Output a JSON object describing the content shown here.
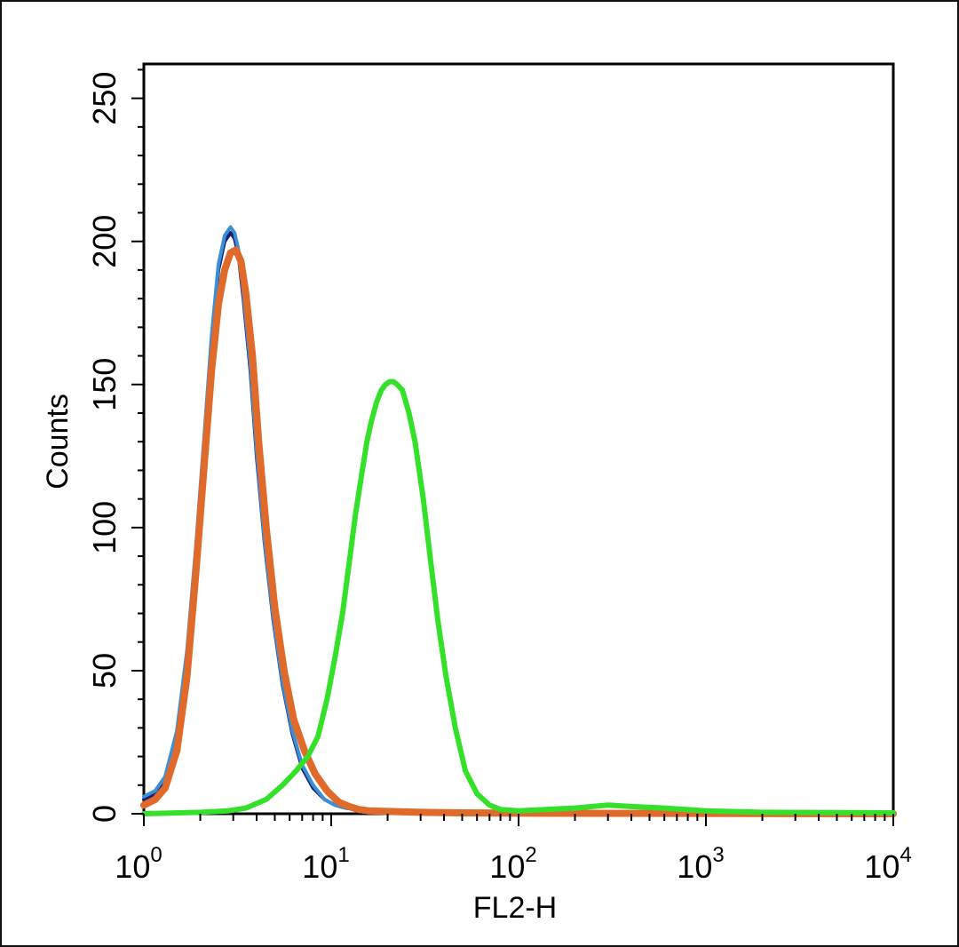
{
  "chart_data": {
    "type": "line",
    "xlabel": "FL2-H",
    "ylabel": "Counts",
    "xscale": "log",
    "xlim": [
      1,
      10000
    ],
    "ylim": [
      0,
      262
    ],
    "yticks": [
      {
        "value": 0,
        "label": "0"
      },
      {
        "value": 50,
        "label": "50"
      },
      {
        "value": 100,
        "label": "100"
      },
      {
        "value": 150,
        "label": "150"
      },
      {
        "value": 200,
        "label": "200"
      },
      {
        "value": 250,
        "label": "250"
      }
    ],
    "xticks": [
      {
        "value": 1,
        "base": "10",
        "exp": "0"
      },
      {
        "value": 10,
        "base": "10",
        "exp": "1"
      },
      {
        "value": 100,
        "base": "10",
        "exp": "2"
      },
      {
        "value": 1000,
        "base": "10",
        "exp": "3"
      },
      {
        "value": 10000,
        "base": "10",
        "exp": "4"
      }
    ],
    "grid": false,
    "legend": "none",
    "series": [
      {
        "color": "#1a1f6e",
        "width": 4,
        "x": [
          1.0,
          1.15,
          1.3,
          1.5,
          1.7,
          1.9,
          2.1,
          2.3,
          2.5,
          2.7,
          2.9,
          3.05,
          3.2,
          3.4,
          3.7,
          4.0,
          4.4,
          4.9,
          5.5,
          6.2,
          7.0,
          8.0,
          9.2,
          10.5,
          12.0,
          14.0,
          17.0,
          22.0,
          30.0,
          50.0,
          100.0,
          10000.0
        ],
        "y": [
          5,
          7,
          12,
          28,
          55,
          92,
          130,
          165,
          190,
          200,
          203,
          201,
          195,
          180,
          155,
          125,
          95,
          68,
          45,
          28,
          16,
          9,
          5,
          3,
          2,
          1.5,
          1,
          0.8,
          0.5,
          0.3,
          0.2,
          0
        ]
      },
      {
        "color": "#3a8fd6",
        "width": 4,
        "x": [
          1.0,
          1.15,
          1.3,
          1.5,
          1.7,
          1.9,
          2.1,
          2.3,
          2.5,
          2.7,
          2.9,
          3.05,
          3.2,
          3.4,
          3.7,
          4.0,
          4.4,
          4.9,
          5.5,
          6.2,
          7.0,
          8.0,
          9.2,
          10.5,
          12.0,
          14.0,
          17.0,
          22.0,
          30.0,
          50.0,
          100.0,
          10000.0
        ],
        "y": [
          6,
          8,
          13,
          29,
          57,
          94,
          132,
          167,
          192,
          202,
          205,
          203,
          197,
          182,
          157,
          127,
          96,
          69,
          46,
          29,
          17,
          10,
          5,
          3,
          2,
          1.5,
          1,
          0.8,
          0.5,
          0.3,
          0.2,
          0
        ]
      },
      {
        "color": "#e06a2a",
        "width": 8,
        "x": [
          1.0,
          1.15,
          1.3,
          1.5,
          1.7,
          1.9,
          2.1,
          2.3,
          2.5,
          2.7,
          2.9,
          3.1,
          3.3,
          3.5,
          3.8,
          4.1,
          4.5,
          5.0,
          5.6,
          6.3,
          7.2,
          8.2,
          9.5,
          11.0,
          12.5,
          14.0,
          16.0,
          20.0,
          30.0,
          50.0,
          100.0,
          10000.0
        ],
        "y": [
          3,
          5,
          9,
          22,
          48,
          85,
          122,
          155,
          178,
          190,
          196,
          197,
          193,
          182,
          160,
          130,
          100,
          72,
          50,
          33,
          22,
          14,
          8,
          4,
          2.5,
          1.5,
          1,
          0.8,
          0.5,
          0.3,
          0.2,
          0
        ]
      },
      {
        "color": "#35e02a",
        "width": 6,
        "x": [
          1.0,
          2.0,
          2.8,
          3.5,
          4.5,
          5.5,
          6.5,
          7.5,
          8.5,
          9.5,
          10.5,
          11.5,
          12.5,
          13.5,
          14.5,
          15.5,
          16.5,
          17.5,
          18.5,
          19.5,
          20.5,
          21.5,
          22.5,
          24.0,
          26.0,
          28.0,
          31.0,
          34.0,
          37.0,
          41.0,
          46.0,
          52.0,
          60.0,
          70.0,
          80.0,
          100.0,
          140.0,
          200.0,
          300.0,
          400.0,
          600.0,
          1000.0,
          2000.0,
          10000.0
        ],
        "y": [
          0,
          0.5,
          1,
          2,
          5,
          10,
          15,
          20,
          27,
          40,
          55,
          70,
          88,
          105,
          118,
          130,
          138,
          144,
          148,
          150,
          151,
          151,
          150,
          148,
          140,
          130,
          110,
          88,
          68,
          48,
          30,
          15,
          7,
          3,
          1.5,
          1,
          1.5,
          2,
          3,
          2.5,
          2,
          1,
          0.5,
          0.3
        ]
      }
    ]
  }
}
